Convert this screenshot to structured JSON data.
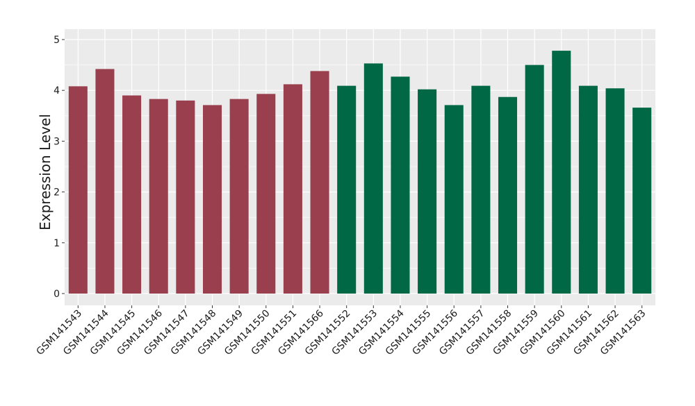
{
  "chart_data": {
    "type": "bar",
    "title": "",
    "xlabel": "",
    "ylabel": "Expression Level",
    "ylim": [
      0,
      5
    ],
    "yticks": [
      0,
      1,
      2,
      3,
      4,
      5
    ],
    "grid": true,
    "categories": [
      "GSM141543",
      "GSM141544",
      "GSM141545",
      "GSM141546",
      "GSM141547",
      "GSM141548",
      "GSM141549",
      "GSM141550",
      "GSM141551",
      "GSM141566",
      "GSM141552",
      "GSM141553",
      "GSM141554",
      "GSM141555",
      "GSM141556",
      "GSM141557",
      "GSM141558",
      "GSM141559",
      "GSM141560",
      "GSM141561",
      "GSM141562",
      "GSM141563"
    ],
    "values": [
      4.08,
      4.42,
      3.9,
      3.83,
      3.8,
      3.71,
      3.83,
      3.93,
      4.12,
      4.38,
      4.09,
      4.53,
      4.27,
      4.02,
      3.71,
      4.09,
      3.87,
      4.5,
      4.78,
      4.09,
      4.04,
      3.66
    ],
    "groups": [
      0,
      0,
      0,
      0,
      0,
      0,
      0,
      0,
      0,
      0,
      1,
      1,
      1,
      1,
      1,
      1,
      1,
      1,
      1,
      1,
      1,
      1
    ],
    "colors": {
      "group_0": "#9A3F4E",
      "group_1": "#006845",
      "panel_background": "#EBEBEB",
      "grid_major": "#FFFFFF"
    }
  }
}
